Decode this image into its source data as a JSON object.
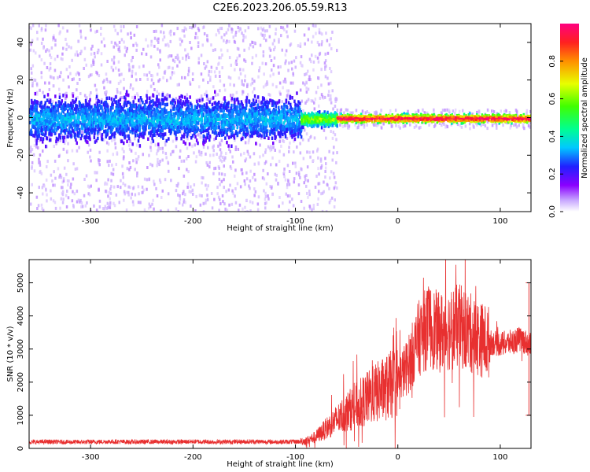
{
  "title": "C2E6.2023.206.05.59.R13",
  "colorbar": {
    "label": "Normalized spectral amplitude",
    "ticks": [
      "0.0",
      "0.2",
      "0.4",
      "0.6",
      "0.8"
    ],
    "tick_values": [
      0.0,
      0.2,
      0.4,
      0.6,
      0.8
    ],
    "range": [
      0.0,
      1.0
    ]
  },
  "chart_data": [
    {
      "type": "heatmap",
      "xlabel": "Height of straight line (km)",
      "ylabel": "Frequency (Hz)",
      "xlim": [
        -360,
        130
      ],
      "ylim": [
        -50,
        50
      ],
      "xticks": [
        -300,
        -200,
        -100,
        0,
        100
      ],
      "yticks": [
        -40,
        -20,
        0,
        20,
        40
      ],
      "xtick_labels": [
        "-300",
        "-200",
        "-100",
        "0",
        "100"
      ],
      "ytick_labels": [
        "-40",
        "-20",
        "0",
        "20",
        "40"
      ],
      "bands": [
        {
          "x_range": [
            -360,
            -95
          ],
          "center_hz": 0,
          "core_halfwidth_hz": 10,
          "scatter_halfwidth_hz": 50,
          "peak_amplitude": 0.35
        },
        {
          "x_range": [
            -95,
            -60
          ],
          "center_hz": 0,
          "core_halfwidth_hz": 3,
          "scatter_halfwidth_hz": 50,
          "peak_amplitude": 0.6
        },
        {
          "x_range": [
            -60,
            130
          ],
          "center_hz": 0,
          "core_halfwidth_hz": 2,
          "scatter_halfwidth_hz": 5,
          "peak_amplitude": 1.0
        }
      ]
    },
    {
      "type": "line",
      "xlabel": "Height of straight line (km)",
      "ylabel": "SNR (10 * v/v)",
      "xlim": [
        -360,
        130
      ],
      "ylim": [
        0,
        5700
      ],
      "xticks": [
        -300,
        -200,
        -100,
        0,
        100
      ],
      "yticks": [
        0,
        1000,
        2000,
        3000,
        4000,
        5000
      ],
      "xtick_labels": [
        "-300",
        "-200",
        "-100",
        "0",
        "100"
      ],
      "ytick_labels": [
        "0",
        "1000",
        "2000",
        "3000",
        "4000",
        "5000"
      ],
      "color": "#e83030",
      "series": [
        {
          "x": [
            -360,
            -340,
            -320,
            -300,
            -280,
            -260,
            -240,
            -220,
            -200,
            -180,
            -160,
            -140,
            -120,
            -100,
            -90,
            -80,
            -70,
            -60,
            -50,
            -40,
            -30,
            -20,
            -10,
            0,
            10,
            20,
            30,
            40,
            50,
            60,
            70,
            80,
            90,
            100,
            110,
            120,
            130
          ],
          "values": [
            190,
            200,
            190,
            195,
            205,
            195,
            200,
            195,
            205,
            195,
            200,
            205,
            195,
            200,
            220,
            350,
            600,
            850,
            1100,
            1300,
            1500,
            1700,
            1850,
            2050,
            2500,
            3300,
            3700,
            3500,
            3600,
            3700,
            3500,
            3300,
            3200,
            3150,
            3200,
            3300,
            3100
          ]
        }
      ]
    }
  ]
}
